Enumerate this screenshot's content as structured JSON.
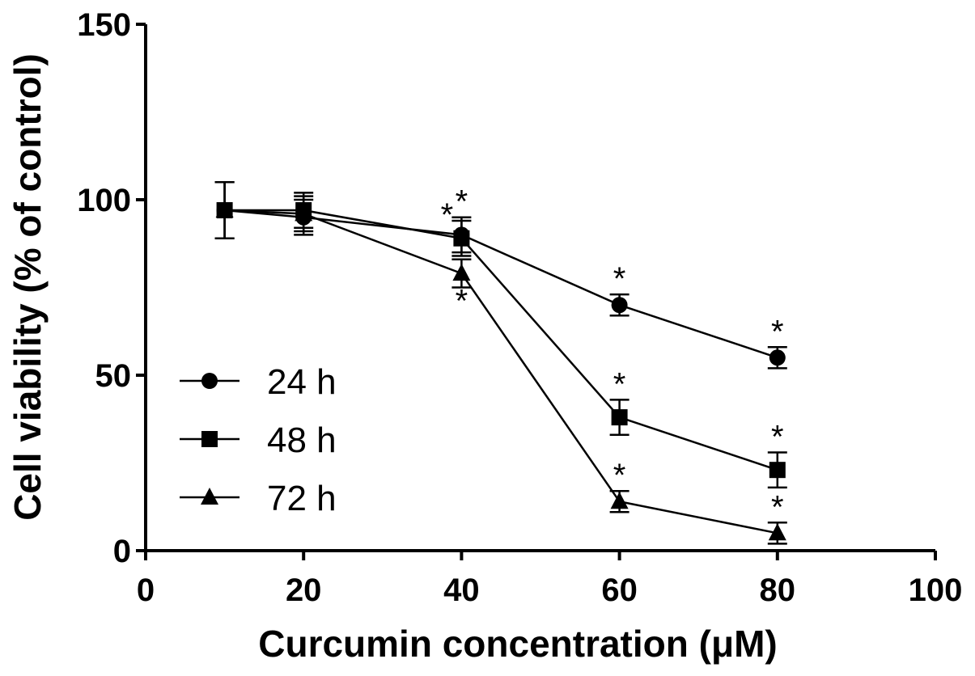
{
  "chart_data": {
    "type": "line",
    "xlabel": "Curcumin concentration (μM)",
    "ylabel": "Cell viability (% of control)",
    "xlim": [
      0,
      100
    ],
    "ylim": [
      0,
      150
    ],
    "xticks": [
      "0",
      "20",
      "40",
      "60",
      "80",
      "100"
    ],
    "yticks": [
      "0",
      "50",
      "100",
      "150"
    ],
    "x": [
      10,
      20,
      40,
      60,
      80
    ],
    "series": [
      {
        "name": "24 h",
        "marker": "circle",
        "values": [
          97,
          95,
          90,
          70,
          55
        ],
        "errors": [
          8,
          5,
          5,
          3,
          3
        ],
        "significant": [
          false,
          false,
          true,
          true,
          true
        ]
      },
      {
        "name": "48 h",
        "marker": "square",
        "values": [
          97,
          97,
          89,
          38,
          23
        ],
        "errors": [
          8,
          5,
          5,
          5,
          5
        ],
        "significant": [
          false,
          false,
          true,
          true,
          true
        ]
      },
      {
        "name": "72 h",
        "marker": "triangle",
        "values": [
          97,
          96,
          79,
          14,
          5
        ],
        "errors": [
          8,
          5,
          4,
          3,
          3
        ],
        "significant": [
          false,
          false,
          true,
          true,
          true
        ]
      }
    ],
    "significance_marker": "*",
    "grid": false,
    "legend_position": "bottom-left",
    "colors": {
      "line": "#000000",
      "background": "#ffffff"
    }
  }
}
